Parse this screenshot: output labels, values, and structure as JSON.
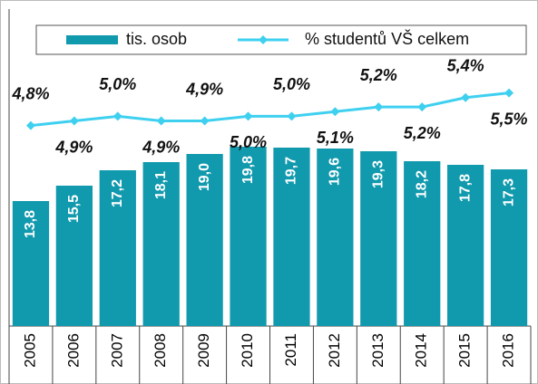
{
  "chart_data": {
    "type": "bar",
    "categories": [
      "2005",
      "2006",
      "2007",
      "2008",
      "2009",
      "2010",
      "2011",
      "2012",
      "2013",
      "2014",
      "2015",
      "2016"
    ],
    "series": [
      {
        "name": "tis. osob",
        "type": "bar",
        "color": "#1199ad",
        "values": [
          13.8,
          15.5,
          17.2,
          18.1,
          19.0,
          19.8,
          19.7,
          19.6,
          19.3,
          18.2,
          17.8,
          17.3
        ],
        "value_labels": [
          "13,8",
          "15,5",
          "17,2",
          "18,1",
          "19,0",
          "19,8",
          "19,7",
          "19,6",
          "19,3",
          "18,2",
          "17,8",
          "17,3"
        ]
      },
      {
        "name": "% studentů VŠ celkem",
        "type": "line",
        "axis": "y2",
        "color": "#3fd0f0",
        "values": [
          4.8,
          4.9,
          5.0,
          4.9,
          4.9,
          5.0,
          5.0,
          5.1,
          5.2,
          5.2,
          5.4,
          5.5
        ],
        "value_labels": [
          "4,8%",
          "4,9%",
          "5,0%",
          "4,9%",
          "4,9%",
          "5,0%",
          "5,0%",
          "5,1%",
          "5,2%",
          "5,2%",
          "5,4%",
          "5,5%"
        ]
      }
    ],
    "ylim": [
      0,
      35
    ],
    "y2lim": [
      0.5,
      7.3
    ],
    "legend": "top"
  }
}
